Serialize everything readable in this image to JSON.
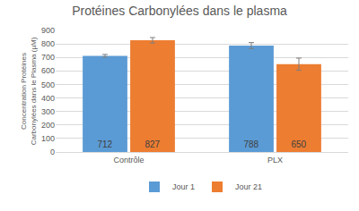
{
  "chart_data": {
    "type": "bar",
    "title": "Protéines Carbonylées dans le plasma",
    "y_label": "Concentration Protéines Carbonylées dans le Plasma (µM)",
    "categories": [
      "Contrôle",
      "PLX"
    ],
    "series": [
      {
        "name": "Jour 1",
        "color": "#5b9bd5",
        "values": [
          712,
          788
        ],
        "errors": [
          10,
          22
        ]
      },
      {
        "name": "Jour 21",
        "color": "#ed7d31",
        "values": [
          827,
          650
        ],
        "errors": [
          20,
          45
        ]
      }
    ],
    "ylim": [
      0,
      900
    ],
    "yticks": [
      0,
      100,
      200,
      300,
      400,
      500,
      600,
      700,
      800,
      900
    ],
    "grid": true,
    "legend": "bottom",
    "data_labels": true
  }
}
